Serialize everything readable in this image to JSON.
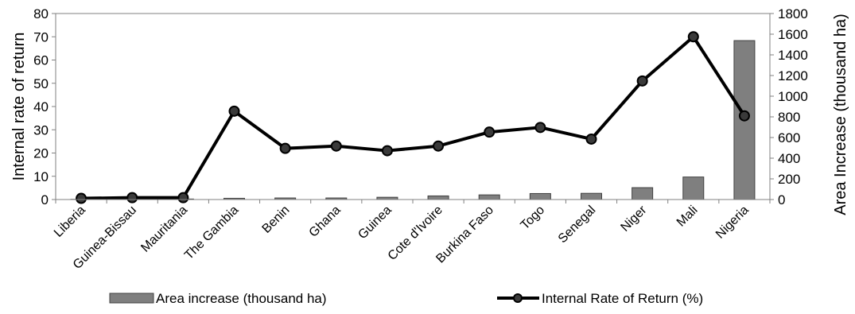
{
  "chart_data": {
    "type": "bar+line",
    "categories": [
      "Liberia",
      "Guinea-Bissau",
      "Mauritania",
      "The Gambia",
      "Benin",
      "Ghana",
      "Guinea",
      "Cote d'Ivoire",
      "Burkina Faso",
      "Togo",
      "Senegal",
      "Niger",
      "Mali",
      "Nigeria"
    ],
    "series": [
      {
        "name": "Area increase (thousand ha)",
        "type": "bar",
        "axis": "right",
        "color": "#7f7f7f",
        "values": [
          2,
          2,
          5,
          12,
          15,
          15,
          22,
          35,
          45,
          58,
          60,
          115,
          218,
          1538
        ]
      },
      {
        "name": "Internal Rate of Return (%)",
        "type": "line",
        "axis": "left",
        "color": "#000000",
        "values": [
          0.5,
          0.8,
          0.8,
          38,
          22,
          23,
          21,
          23,
          29,
          31,
          26,
          51,
          70,
          36
        ]
      }
    ],
    "ylabel": "Internal rate of return",
    "y2label": "Area Increase (thousand ha)",
    "ylim": [
      0,
      80
    ],
    "y2lim": [
      0,
      1800
    ],
    "yticks": [
      "0",
      "10",
      "20",
      "30",
      "40",
      "50",
      "60",
      "70",
      "80"
    ],
    "y2ticks": [
      "0",
      "200",
      "400",
      "600",
      "800",
      "1000",
      "1200",
      "1400",
      "1600",
      "1800"
    ],
    "grid": false,
    "legend_position": "bottom"
  }
}
